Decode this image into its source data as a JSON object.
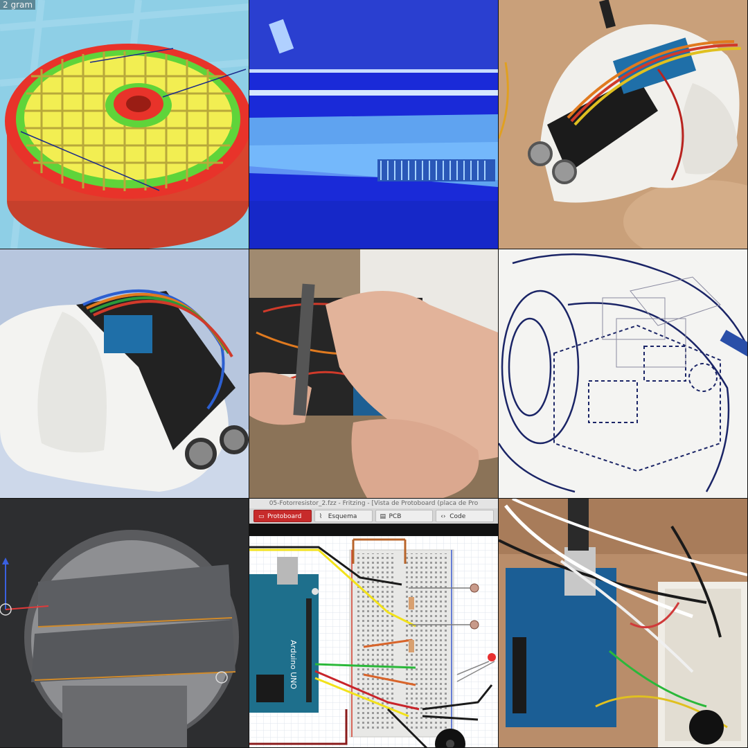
{
  "tiles": {
    "slicer": {
      "corner_text": "2 gram"
    },
    "fritzing": {
      "window_title": "05-Fotorresistor_2.fzz - Fritzing - [Vista de Protoboard (placa de Pro",
      "tabs": [
        {
          "label": "Protoboard",
          "icon": "breadboard-icon"
        },
        {
          "label": "Esquema",
          "icon": "schematic-icon"
        },
        {
          "label": "PCB",
          "icon": "pcb-icon"
        },
        {
          "label": "Code",
          "icon": "code-icon"
        }
      ],
      "board_text": "Arduino UNO"
    }
  },
  "colors": {
    "slicer_bg": "#8ecfe6",
    "uv_blue": "#1a2ad8",
    "wood": "#c9a07a",
    "fritzing_red": "#c72b2b",
    "arduino_teal": "#1e6f8c"
  }
}
